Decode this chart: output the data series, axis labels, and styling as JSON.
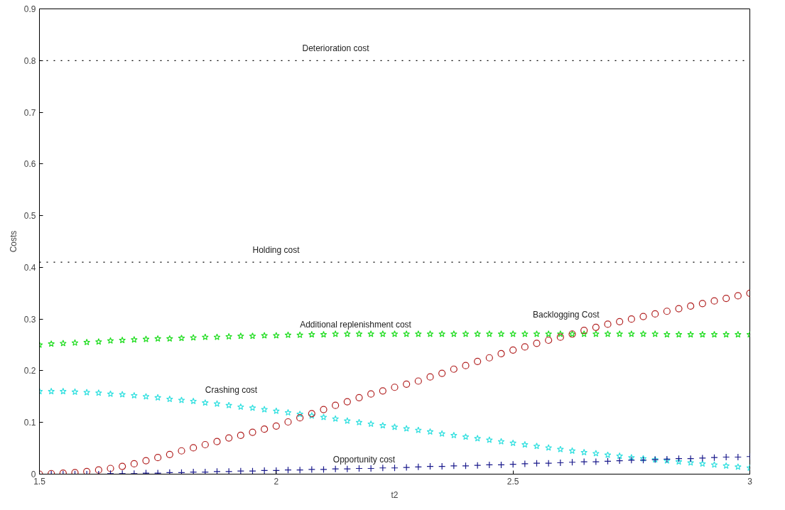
{
  "chart_data": {
    "type": "scatter",
    "xlabel": "t2",
    "ylabel": "Costs",
    "x": [
      1.5,
      1.525,
      1.55,
      1.575,
      1.6,
      1.625,
      1.65,
      1.675,
      1.7,
      1.725,
      1.75,
      1.775,
      1.8,
      1.825,
      1.85,
      1.875,
      1.9,
      1.925,
      1.95,
      1.975,
      2.0,
      2.025,
      2.05,
      2.075,
      2.1,
      2.125,
      2.15,
      2.175,
      2.2,
      2.225,
      2.25,
      2.275,
      2.3,
      2.325,
      2.35,
      2.375,
      2.4,
      2.425,
      2.45,
      2.475,
      2.5,
      2.525,
      2.55,
      2.575,
      2.6,
      2.625,
      2.65,
      2.675,
      2.7,
      2.725,
      2.75,
      2.775,
      2.8,
      2.825,
      2.85,
      2.875,
      2.9,
      2.925,
      2.95,
      2.975,
      3.0
    ],
    "series": [
      {
        "marker": "star",
        "color": "#22dd22",
        "values": [
          0.25,
          0.252,
          0.253,
          0.254,
          0.255,
          0.256,
          0.258,
          0.259,
          0.26,
          0.261,
          0.262,
          0.262,
          0.263,
          0.264,
          0.265,
          0.265,
          0.266,
          0.267,
          0.267,
          0.268,
          0.268,
          0.269,
          0.269,
          0.27,
          0.27,
          0.271,
          0.271,
          0.271,
          0.271,
          0.271,
          0.271,
          0.271,
          0.271,
          0.271,
          0.271,
          0.271,
          0.271,
          0.271,
          0.271,
          0.271,
          0.271,
          0.271,
          0.271,
          0.271,
          0.271,
          0.271,
          0.271,
          0.271,
          0.271,
          0.271,
          0.271,
          0.271,
          0.271,
          0.27,
          0.27,
          0.27,
          0.27,
          0.27,
          0.27,
          0.27,
          0.27
        ]
      },
      {
        "marker": "star",
        "color": "#33e0e0",
        "values": [
          0.16,
          0.16,
          0.16,
          0.159,
          0.158,
          0.157,
          0.155,
          0.154,
          0.152,
          0.15,
          0.148,
          0.145,
          0.143,
          0.141,
          0.138,
          0.136,
          0.133,
          0.13,
          0.128,
          0.125,
          0.122,
          0.119,
          0.116,
          0.113,
          0.11,
          0.107,
          0.103,
          0.1,
          0.097,
          0.094,
          0.091,
          0.088,
          0.085,
          0.082,
          0.078,
          0.075,
          0.072,
          0.069,
          0.066,
          0.063,
          0.06,
          0.057,
          0.054,
          0.051,
          0.048,
          0.045,
          0.042,
          0.04,
          0.037,
          0.035,
          0.032,
          0.03,
          0.028,
          0.026,
          0.024,
          0.022,
          0.02,
          0.018,
          0.016,
          0.014,
          0.012
        ]
      },
      {
        "marker": "circle",
        "color": "#b22222",
        "values": [
          0,
          0.001,
          0.002,
          0.003,
          0.005,
          0.008,
          0.011,
          0.015,
          0.02,
          0.026,
          0.032,
          0.038,
          0.045,
          0.051,
          0.057,
          0.063,
          0.07,
          0.075,
          0.081,
          0.087,
          0.093,
          0.101,
          0.109,
          0.117,
          0.125,
          0.133,
          0.14,
          0.148,
          0.155,
          0.161,
          0.168,
          0.174,
          0.18,
          0.188,
          0.195,
          0.203,
          0.21,
          0.218,
          0.225,
          0.233,
          0.24,
          0.246,
          0.253,
          0.259,
          0.265,
          0.271,
          0.278,
          0.284,
          0.29,
          0.295,
          0.3,
          0.305,
          0.31,
          0.315,
          0.32,
          0.325,
          0.33,
          0.335,
          0.34,
          0.345,
          0.35
        ]
      },
      {
        "marker": "cross",
        "color": "#1a1a8c",
        "values": [
          0,
          0,
          0,
          0,
          0,
          0,
          0.001,
          0.001,
          0.001,
          0.002,
          0.002,
          0.003,
          0.003,
          0.004,
          0.004,
          0.005,
          0.005,
          0.006,
          0.006,
          0.007,
          0.007,
          0.008,
          0.008,
          0.009,
          0.009,
          0.01,
          0.01,
          0.011,
          0.011,
          0.012,
          0.012,
          0.013,
          0.014,
          0.015,
          0.015,
          0.016,
          0.016,
          0.017,
          0.018,
          0.018,
          0.019,
          0.02,
          0.021,
          0.021,
          0.022,
          0.023,
          0.024,
          0.024,
          0.025,
          0.026,
          0.027,
          0.027,
          0.028,
          0.029,
          0.03,
          0.03,
          0.031,
          0.032,
          0.033,
          0.033,
          0.034
        ]
      }
    ],
    "annotations": [
      {
        "text": "Additional replenishment cost",
        "x": 2.05,
        "y": 0.271
      },
      {
        "text": "Crashing cost",
        "x": 1.85,
        "y": 0.145
      },
      {
        "text": "Opportunity cost",
        "x": 2.12,
        "y": 0.01
      },
      {
        "text": "Backlogging Cost",
        "x": 2.7,
        "y": 0.29
      }
    ],
    "ref_lines": [
      {
        "axis": "y",
        "value": 0.8,
        "label": "Deterioration cost",
        "color": "#000000",
        "line_style": "dotted"
      },
      {
        "axis": "y",
        "value": 0.41,
        "label": "Holding cost",
        "color": "#000000",
        "line_style": "dotted"
      }
    ],
    "xlim": [
      1.5,
      3
    ],
    "xticks": [
      1.5,
      2,
      2.5,
      3
    ],
    "ylim": [
      0,
      0.9
    ],
    "yticks": [
      0,
      0.1,
      0.2,
      0.3,
      0.4,
      0.5,
      0.6,
      0.7,
      0.8,
      0.9
    ],
    "grid": false
  }
}
